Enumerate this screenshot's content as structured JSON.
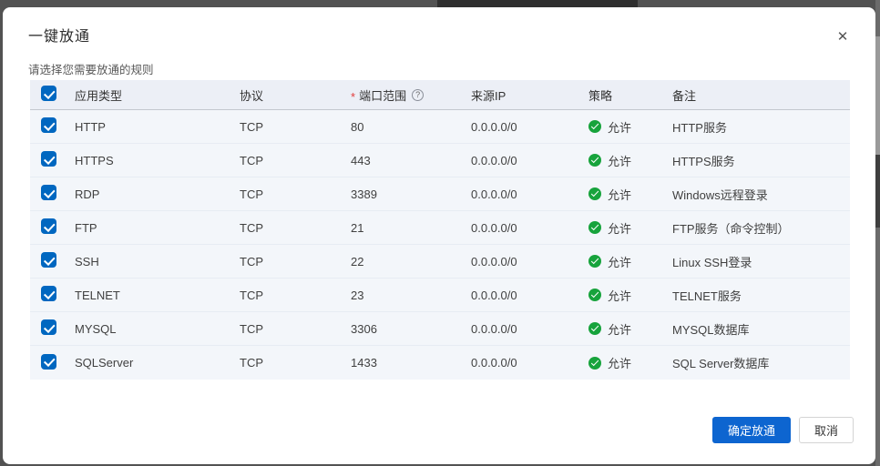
{
  "dialog": {
    "title": "一键放通",
    "subtitle": "请选择您需要放通的规则",
    "close_glyph": "✕"
  },
  "table": {
    "select_all": {
      "checked": true
    },
    "header": {
      "app": "应用类型",
      "protocol": "协议",
      "port": "端口范围",
      "port_required_mark": "*",
      "port_help_glyph": "?",
      "source": "来源IP",
      "policy": "策略",
      "remark": "备注"
    },
    "rows": [
      {
        "checked": true,
        "app": "HTTP",
        "protocol": "TCP",
        "port": "80",
        "source": "0.0.0.0/0",
        "policy": "允许",
        "remark": "HTTP服务"
      },
      {
        "checked": true,
        "app": "HTTPS",
        "protocol": "TCP",
        "port": "443",
        "source": "0.0.0.0/0",
        "policy": "允许",
        "remark": "HTTPS服务"
      },
      {
        "checked": true,
        "app": "RDP",
        "protocol": "TCP",
        "port": "3389",
        "source": "0.0.0.0/0",
        "policy": "允许",
        "remark": "Windows远程登录"
      },
      {
        "checked": true,
        "app": "FTP",
        "protocol": "TCP",
        "port": "21",
        "source": "0.0.0.0/0",
        "policy": "允许",
        "remark": "FTP服务（命令控制）"
      },
      {
        "checked": true,
        "app": "SSH",
        "protocol": "TCP",
        "port": "22",
        "source": "0.0.0.0/0",
        "policy": "允许",
        "remark": "Linux SSH登录"
      },
      {
        "checked": true,
        "app": "TELNET",
        "protocol": "TCP",
        "port": "23",
        "source": "0.0.0.0/0",
        "policy": "允许",
        "remark": "TELNET服务"
      },
      {
        "checked": true,
        "app": "MYSQL",
        "protocol": "TCP",
        "port": "3306",
        "source": "0.0.0.0/0",
        "policy": "允许",
        "remark": "MYSQL数据库"
      },
      {
        "checked": true,
        "app": "SQLServer",
        "protocol": "TCP",
        "port": "1433",
        "source": "0.0.0.0/0",
        "policy": "允许",
        "remark": "SQL Server数据库"
      }
    ]
  },
  "footer": {
    "confirm": "确定放通",
    "cancel": "取消"
  },
  "colors": {
    "primary_blue": "#0d65d0",
    "checkbox_blue": "#0067c0",
    "allow_green": "#17a33c",
    "required_red": "#e23c3c",
    "header_bg": "#eceff6",
    "row_bg": "#f3f6fa"
  }
}
